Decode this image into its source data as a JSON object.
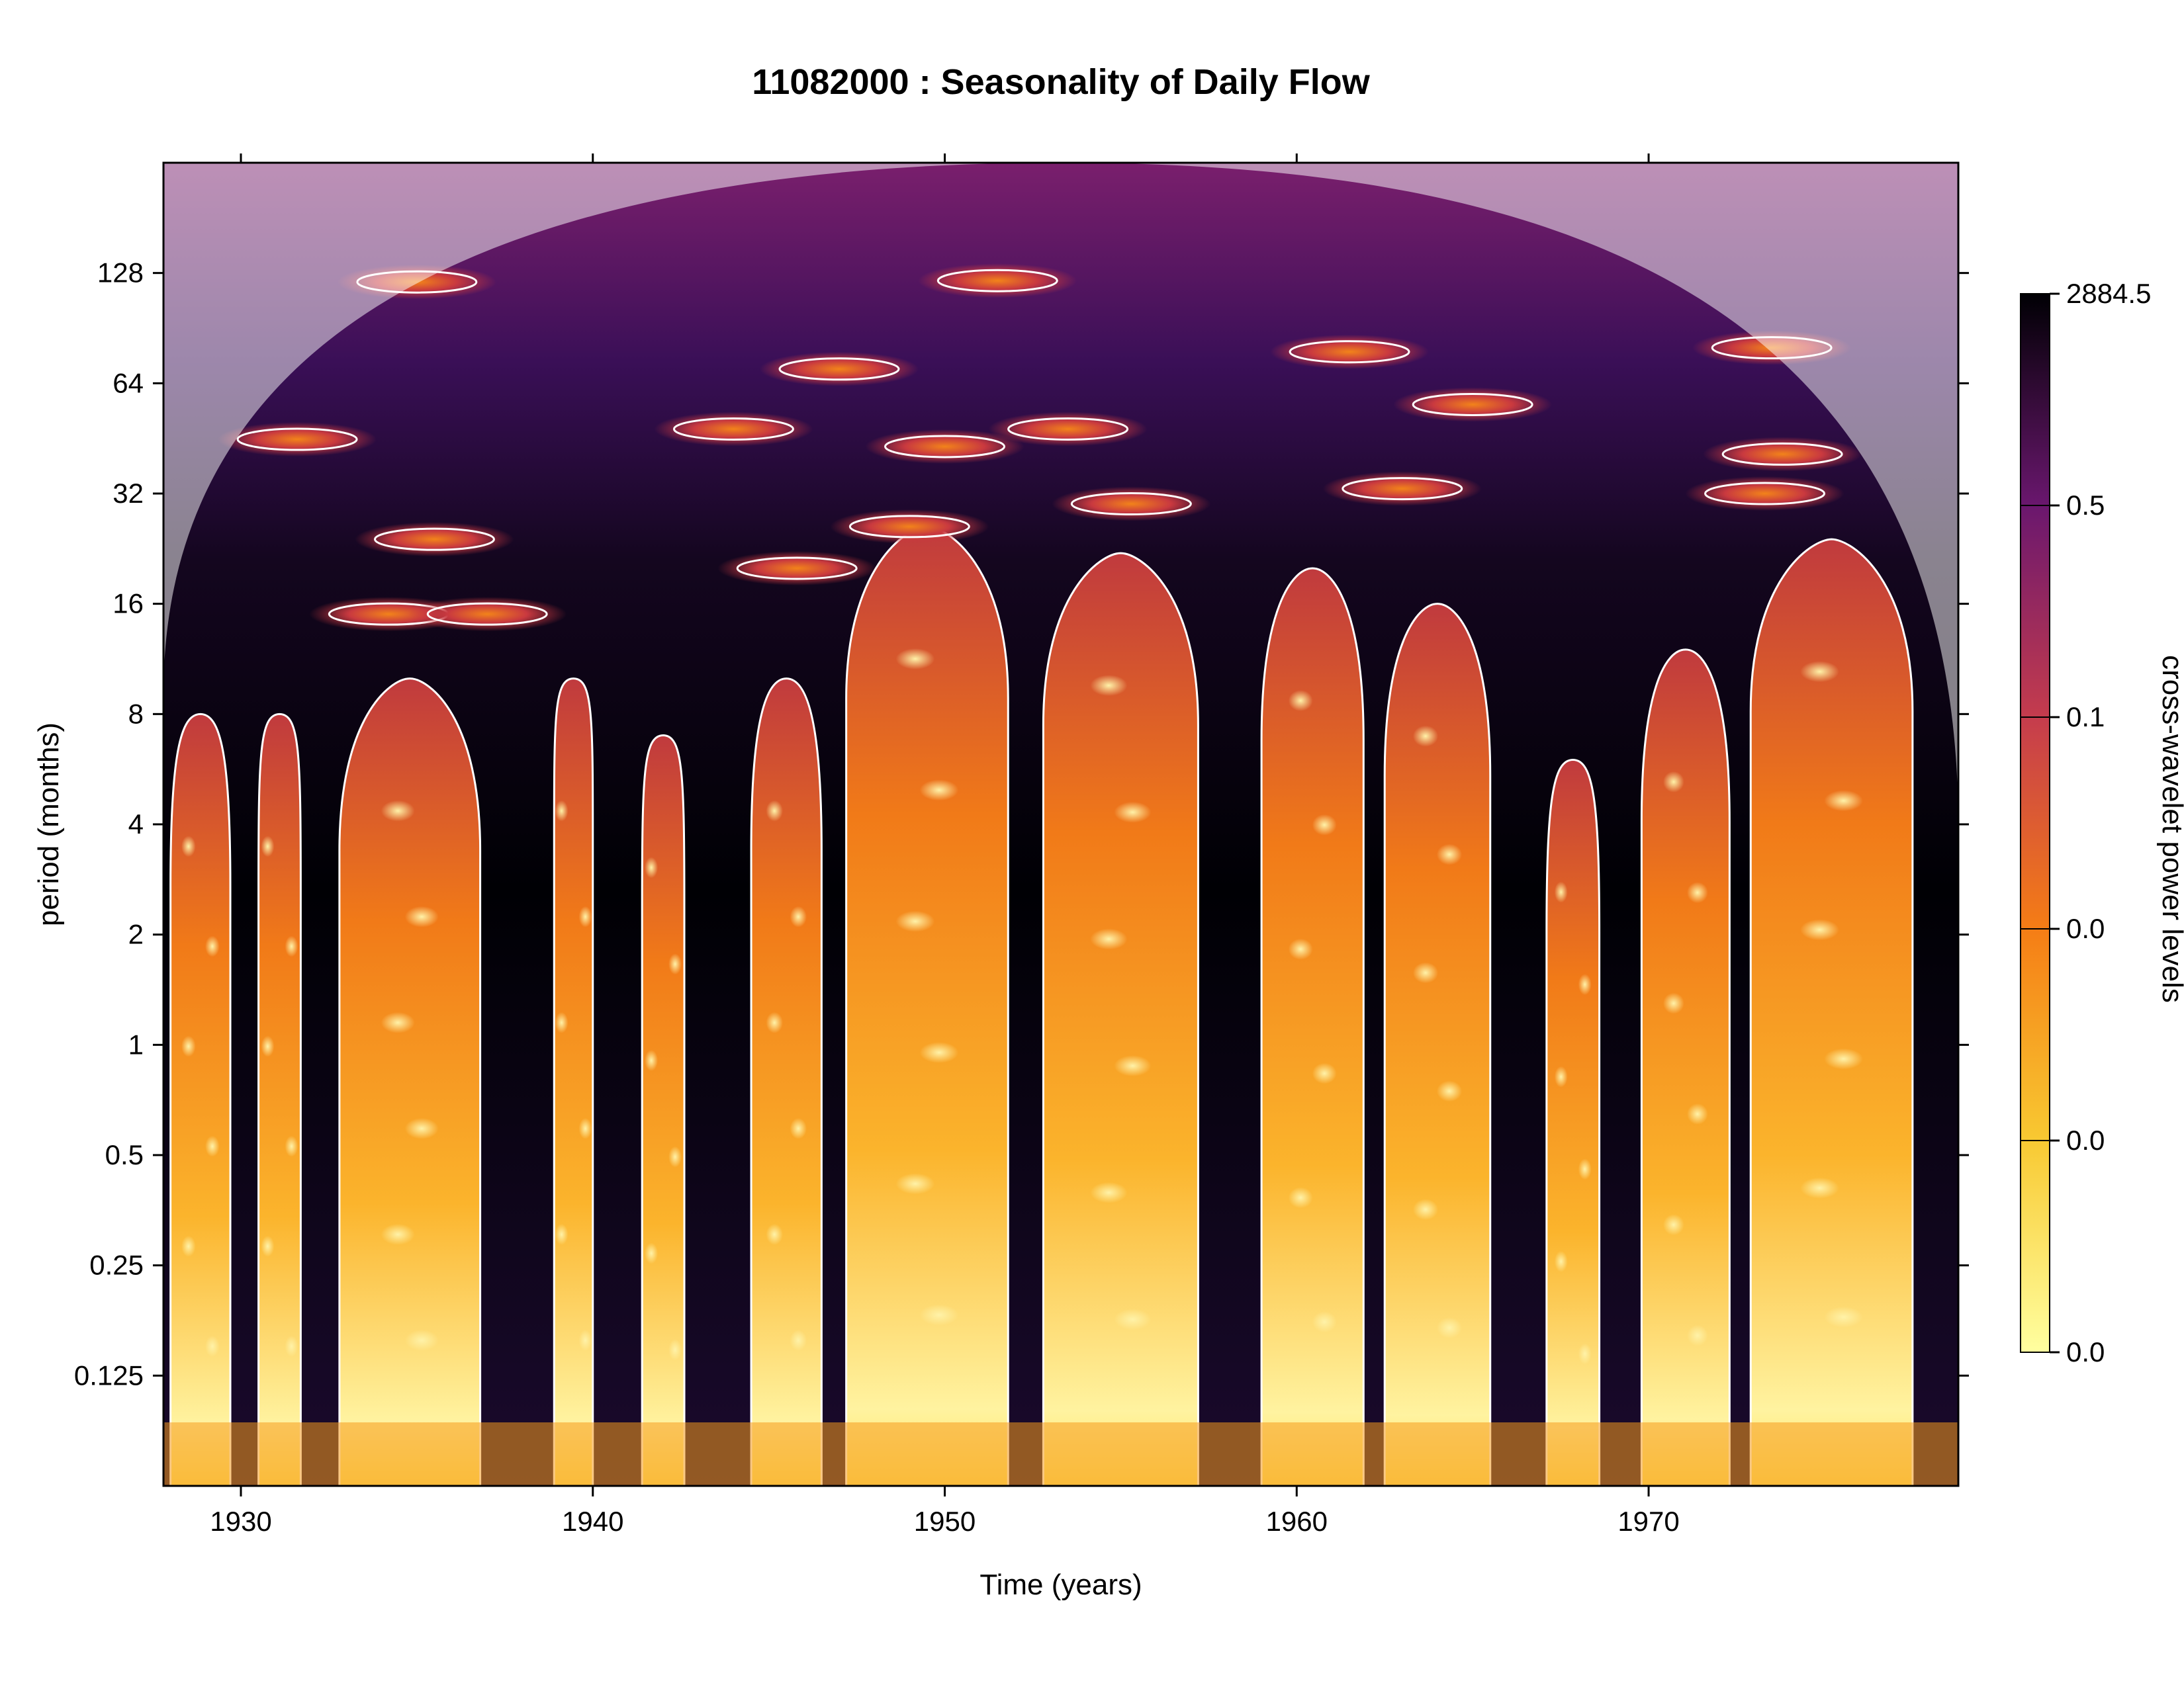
{
  "chart_data": {
    "type": "heatmap",
    "title": "11082000 : Seasonality of Daily Flow",
    "xlabel": "Time (years)",
    "ylabel": "period (months)",
    "xlim": [
      1927.8,
      1978.8
    ],
    "ylim": [
      0.0625,
      256
    ],
    "y_scale": "log2",
    "x_ticks": [
      1930,
      1940,
      1950,
      1960,
      1970
    ],
    "x_tick_labels": [
      "1930",
      "1940",
      "1950",
      "1960",
      "1970"
    ],
    "y_ticks": [
      0.125,
      0.25,
      0.5,
      1,
      2,
      4,
      8,
      16,
      32,
      64,
      128
    ],
    "y_tick_labels": [
      "0.125",
      "0.25",
      "0.5",
      "1",
      "2",
      "4",
      "8",
      "16",
      "32",
      "64",
      "128"
    ],
    "colorbar": {
      "label": "cross-wavelet power levels",
      "tick_labels": [
        "2884.5",
        "0.5",
        "0.1",
        "0.0",
        "0.0",
        "0.0"
      ],
      "colors": [
        "#ffffa0",
        "#f8c932",
        "#f57d15",
        "#c53c4d",
        "#6a176e",
        "#000004"
      ]
    },
    "significance_contour_color": "#ffffff",
    "cone_of_influence": "shaded-white",
    "wet_periods": [
      {
        "start": 1928.0,
        "end": 1929.7,
        "top": 8
      },
      {
        "start": 1930.5,
        "end": 1931.7,
        "top": 8
      },
      {
        "start": 1932.8,
        "end": 1936.8,
        "top": 10
      },
      {
        "start": 1938.9,
        "end": 1940.0,
        "top": 10
      },
      {
        "start": 1941.4,
        "end": 1942.6,
        "top": 7
      },
      {
        "start": 1944.5,
        "end": 1946.5,
        "top": 10
      },
      {
        "start": 1947.2,
        "end": 1951.8,
        "top": 26
      },
      {
        "start": 1952.8,
        "end": 1957.2,
        "top": 22
      },
      {
        "start": 1959.0,
        "end": 1961.9,
        "top": 20
      },
      {
        "start": 1962.5,
        "end": 1965.5,
        "top": 16
      },
      {
        "start": 1967.1,
        "end": 1968.6,
        "top": 6
      },
      {
        "start": 1969.8,
        "end": 1972.3,
        "top": 12
      },
      {
        "start": 1972.9,
        "end": 1977.5,
        "top": 24
      }
    ],
    "long_period_features": [
      {
        "x": 1935.0,
        "period": 121
      },
      {
        "x": 1931.6,
        "period": 45
      },
      {
        "x": 1935.5,
        "period": 24
      },
      {
        "x": 1934.2,
        "period": 15
      },
      {
        "x": 1937.0,
        "period": 15
      },
      {
        "x": 1944.0,
        "period": 48
      },
      {
        "x": 1947.0,
        "period": 70
      },
      {
        "x": 1950.0,
        "period": 43
      },
      {
        "x": 1953.5,
        "period": 48
      },
      {
        "x": 1951.5,
        "period": 122
      },
      {
        "x": 1955.3,
        "period": 30
      },
      {
        "x": 1961.5,
        "period": 78
      },
      {
        "x": 1965.0,
        "period": 56
      },
      {
        "x": 1963.0,
        "period": 33
      },
      {
        "x": 1973.5,
        "period": 80
      },
      {
        "x": 1973.8,
        "period": 41
      },
      {
        "x": 1973.3,
        "period": 32
      },
      {
        "x": 1949.0,
        "period": 26
      },
      {
        "x": 1945.8,
        "period": 20
      }
    ]
  }
}
